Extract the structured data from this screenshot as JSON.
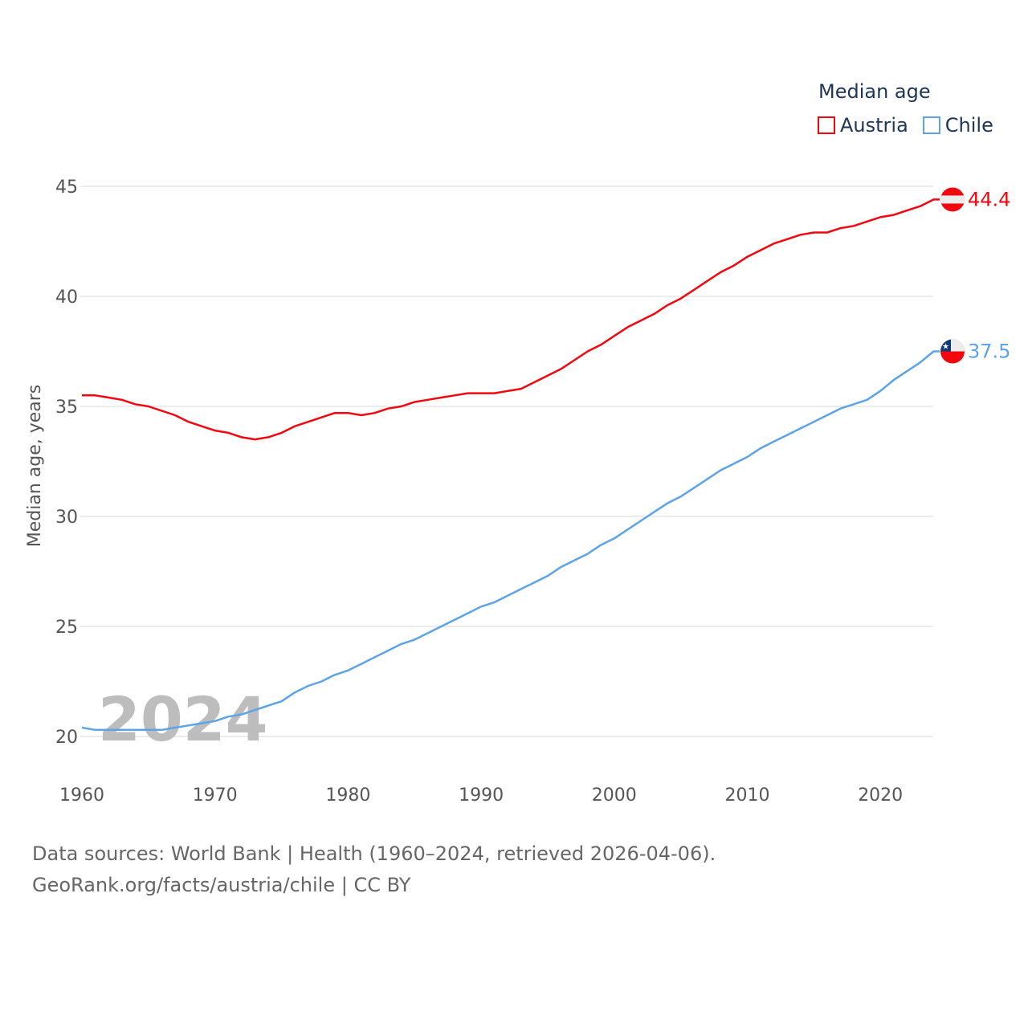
{
  "chart_data": {
    "type": "line",
    "title": "",
    "xlabel": "",
    "ylabel": "Median age, years",
    "xlim": [
      1960,
      2024
    ],
    "ylim": [
      18.5,
      47
    ],
    "x_ticks": [
      "1960",
      "1970",
      "1980",
      "1990",
      "2000",
      "2010",
      "2020"
    ],
    "y_ticks": [
      "20",
      "25",
      "30",
      "35",
      "40",
      "45"
    ],
    "grid": true,
    "legend_title": "Median age",
    "legend_placement": "top-right",
    "watermark_year": "2024",
    "x": [
      1960,
      1961,
      1962,
      1963,
      1964,
      1965,
      1966,
      1967,
      1968,
      1969,
      1970,
      1971,
      1972,
      1973,
      1974,
      1975,
      1976,
      1977,
      1978,
      1979,
      1980,
      1981,
      1982,
      1983,
      1984,
      1985,
      1986,
      1987,
      1988,
      1989,
      1990,
      1991,
      1992,
      1993,
      1994,
      1995,
      1996,
      1997,
      1998,
      1999,
      2000,
      2001,
      2002,
      2003,
      2004,
      2005,
      2006,
      2007,
      2008,
      2009,
      2010,
      2011,
      2012,
      2013,
      2014,
      2015,
      2016,
      2017,
      2018,
      2019,
      2020,
      2021,
      2022,
      2023,
      2024
    ],
    "series": [
      {
        "name": "Austria",
        "color": "#f2070f",
        "end_label": "44.4",
        "values": [
          35.5,
          35.5,
          35.4,
          35.3,
          35.1,
          35.0,
          34.8,
          34.6,
          34.3,
          34.1,
          33.9,
          33.8,
          33.6,
          33.5,
          33.6,
          33.8,
          34.1,
          34.3,
          34.5,
          34.7,
          34.7,
          34.6,
          34.7,
          34.9,
          35.0,
          35.2,
          35.3,
          35.4,
          35.5,
          35.6,
          35.6,
          35.6,
          35.7,
          35.8,
          36.1,
          36.4,
          36.7,
          37.1,
          37.5,
          37.8,
          38.2,
          38.6,
          38.9,
          39.2,
          39.6,
          39.9,
          40.3,
          40.7,
          41.1,
          41.4,
          41.8,
          42.1,
          42.4,
          42.6,
          42.8,
          42.9,
          42.9,
          43.1,
          43.2,
          43.4,
          43.6,
          43.7,
          43.9,
          44.1,
          44.4
        ]
      },
      {
        "name": "Chile",
        "color": "#5ca3e8",
        "end_label": "37.5",
        "values": [
          20.4,
          20.3,
          20.3,
          20.3,
          20.3,
          20.3,
          20.3,
          20.4,
          20.5,
          20.6,
          20.7,
          20.9,
          21.0,
          21.2,
          21.4,
          21.6,
          22.0,
          22.3,
          22.5,
          22.8,
          23.0,
          23.3,
          23.6,
          23.9,
          24.2,
          24.4,
          24.7,
          25.0,
          25.3,
          25.6,
          25.9,
          26.1,
          26.4,
          26.7,
          27.0,
          27.3,
          27.7,
          28.0,
          28.3,
          28.7,
          29.0,
          29.4,
          29.8,
          30.2,
          30.6,
          30.9,
          31.3,
          31.7,
          32.1,
          32.4,
          32.7,
          33.1,
          33.4,
          33.7,
          34.0,
          34.3,
          34.6,
          34.9,
          35.1,
          35.3,
          35.7,
          36.2,
          36.6,
          37.0,
          37.5
        ]
      }
    ]
  },
  "footer": {
    "line1": "Data sources: World Bank | Health (1960–2024, retrieved 2026-04-06).",
    "line2": "GeoRank.org/facts/austria/chile | CC BY"
  }
}
